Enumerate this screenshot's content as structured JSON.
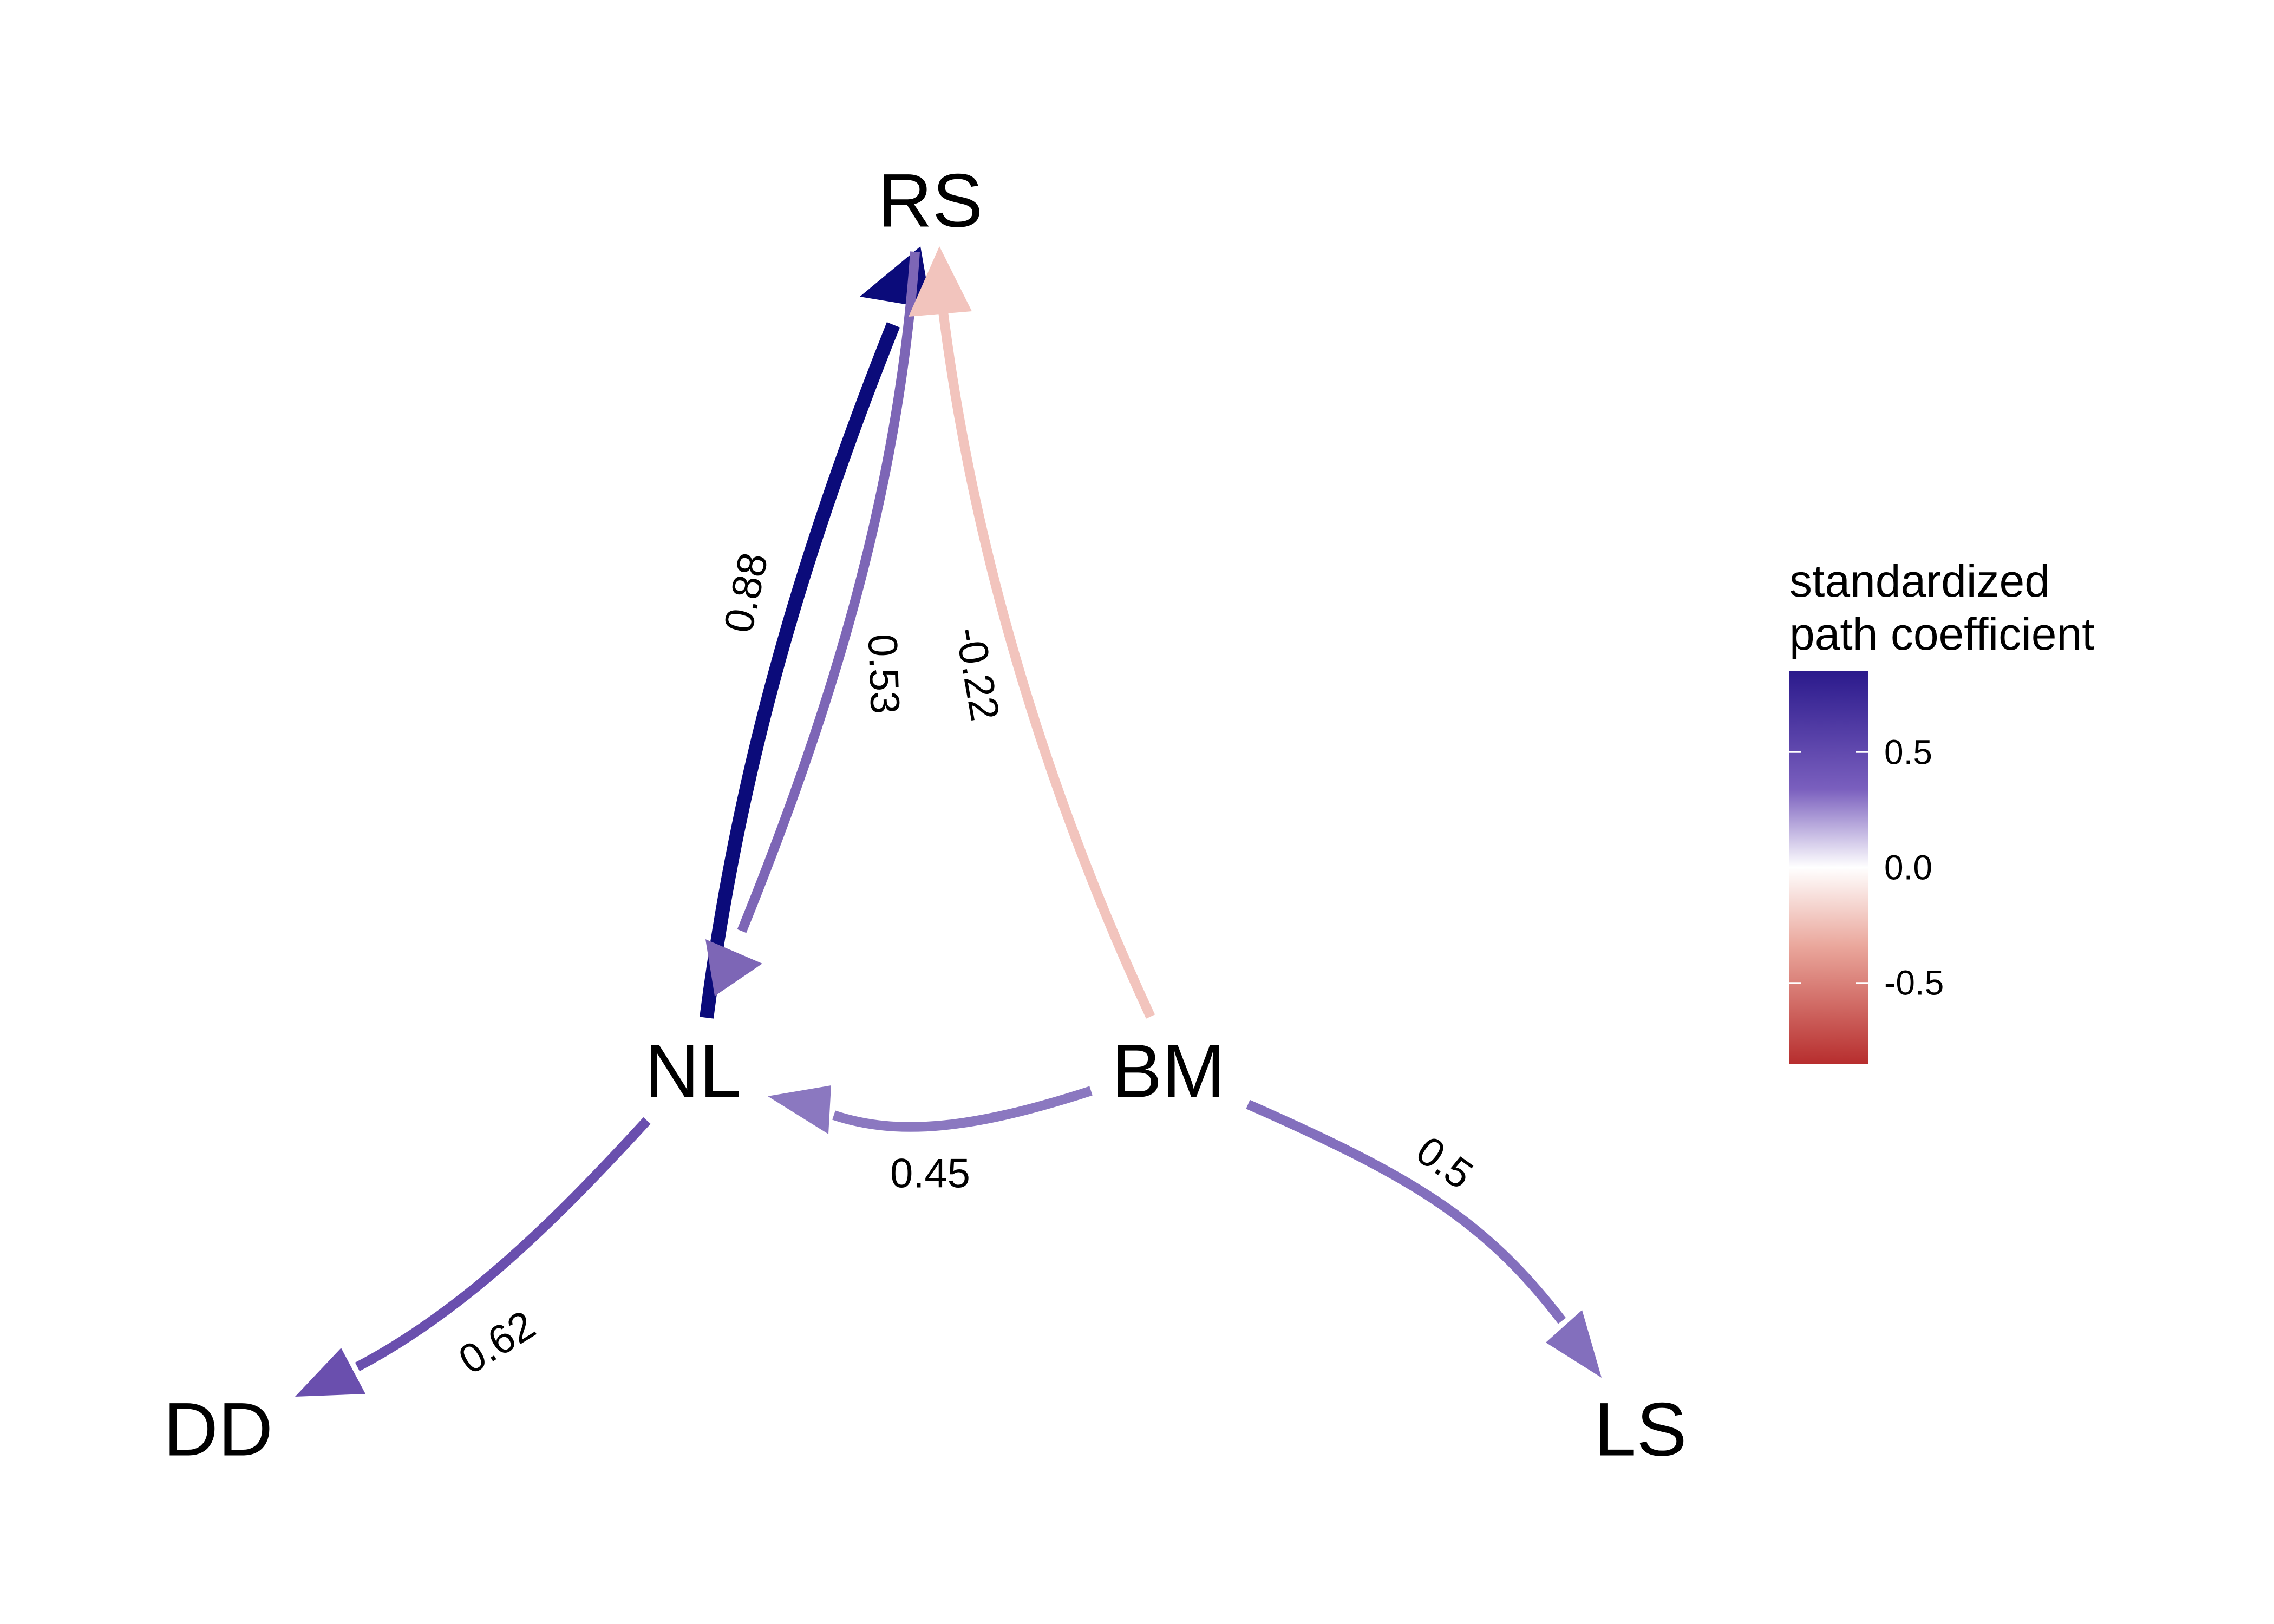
{
  "nodes": [
    {
      "id": "RS",
      "label": "RS"
    },
    {
      "id": "NL",
      "label": "NL"
    },
    {
      "id": "BM",
      "label": "BM"
    },
    {
      "id": "DD",
      "label": "DD"
    },
    {
      "id": "LS",
      "label": "LS"
    }
  ],
  "edges": [
    {
      "from": "NL",
      "to": "RS",
      "coefficient": 0.88,
      "label": "0.88",
      "color": "#0b0b7a"
    },
    {
      "from": "RS",
      "to": "NL",
      "coefficient": 0.53,
      "label": "0.53",
      "color": "#7d66b6"
    },
    {
      "from": "BM",
      "to": "RS",
      "coefficient": -0.22,
      "label": "-0.22",
      "color": "#f2c4bd"
    },
    {
      "from": "BM",
      "to": "NL",
      "coefficient": 0.45,
      "label": "0.45",
      "color": "#8b78c0"
    },
    {
      "from": "NL",
      "to": "DD",
      "coefficient": 0.62,
      "label": "0.62",
      "color": "#6a4fae"
    },
    {
      "from": "BM",
      "to": "LS",
      "coefficient": 0.5,
      "label": "0.5",
      "color": "#836fbd"
    }
  ],
  "legend": {
    "title_line1": "standardized",
    "title_line2": "path coefficient",
    "ticks": [
      {
        "value": 0.5,
        "label": "0.5"
      },
      {
        "value": 0.0,
        "label": "0.0"
      },
      {
        "value": -0.5,
        "label": "-0.5"
      }
    ],
    "range": [
      -0.85,
      0.85
    ],
    "colors": {
      "high": "#2b1a8c",
      "mid": "#ffffff",
      "low": "#b72e2e"
    }
  }
}
